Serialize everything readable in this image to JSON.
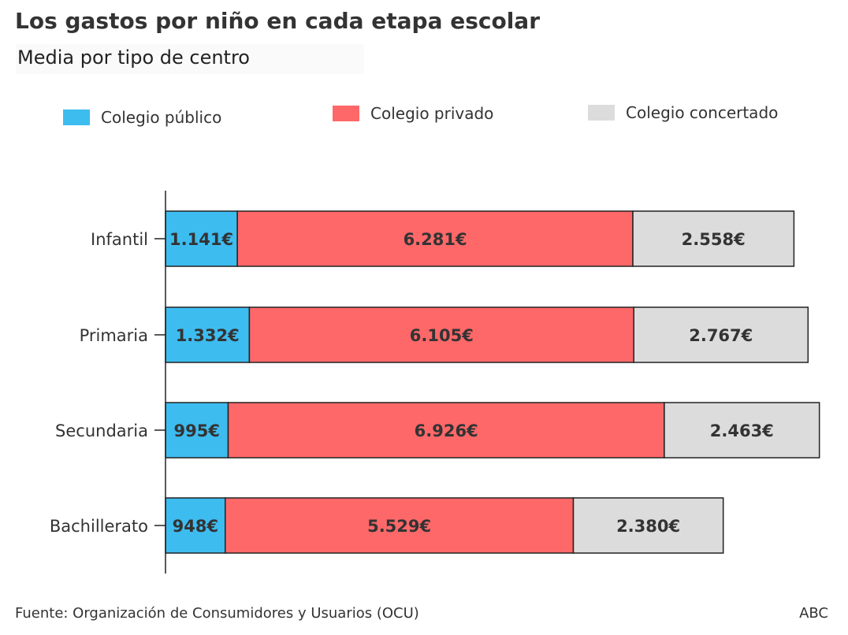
{
  "title": "Los gastos por niño en cada etapa escolar",
  "subtitle": "Media por tipo de centro",
  "legend": [
    {
      "label": "Colegio público",
      "color": "#3dbcf0"
    },
    {
      "label": "Colegio privado",
      "color": "#fe6869"
    },
    {
      "label": "Colegio concertado",
      "color": "#dcdcdc"
    }
  ],
  "footer": {
    "source": "Fuente: Organización de Consumidores y Usuarios (OCU)",
    "brand": "ABC"
  },
  "chart_data": {
    "type": "bar",
    "orientation": "horizontal",
    "stacked": true,
    "title": "Los gastos por niño en cada etapa escolar",
    "subtitle": "Media por tipo de centro",
    "categories": [
      "Infantil",
      "Primaria",
      "Secundaria",
      "Bachillerato"
    ],
    "series": [
      {
        "name": "Colegio público",
        "color": "#3dbcf0",
        "values": [
          1141,
          1332,
          995,
          948
        ],
        "labels": [
          "1.141€",
          "1.332€",
          "995€",
          "948€"
        ]
      },
      {
        "name": "Colegio privado",
        "color": "#fe6869",
        "values": [
          6281,
          6105,
          6926,
          5529
        ],
        "labels": [
          "6.281€",
          "6.105€",
          "6.926€",
          "5.529€"
        ]
      },
      {
        "name": "Colegio concertado",
        "color": "#dcdcdc",
        "values": [
          2558,
          2767,
          2463,
          2380
        ],
        "labels": [
          "2.558€",
          "2.767€",
          "2.463€",
          "2.380€"
        ]
      }
    ],
    "legend_position": "top",
    "grid": false
  }
}
